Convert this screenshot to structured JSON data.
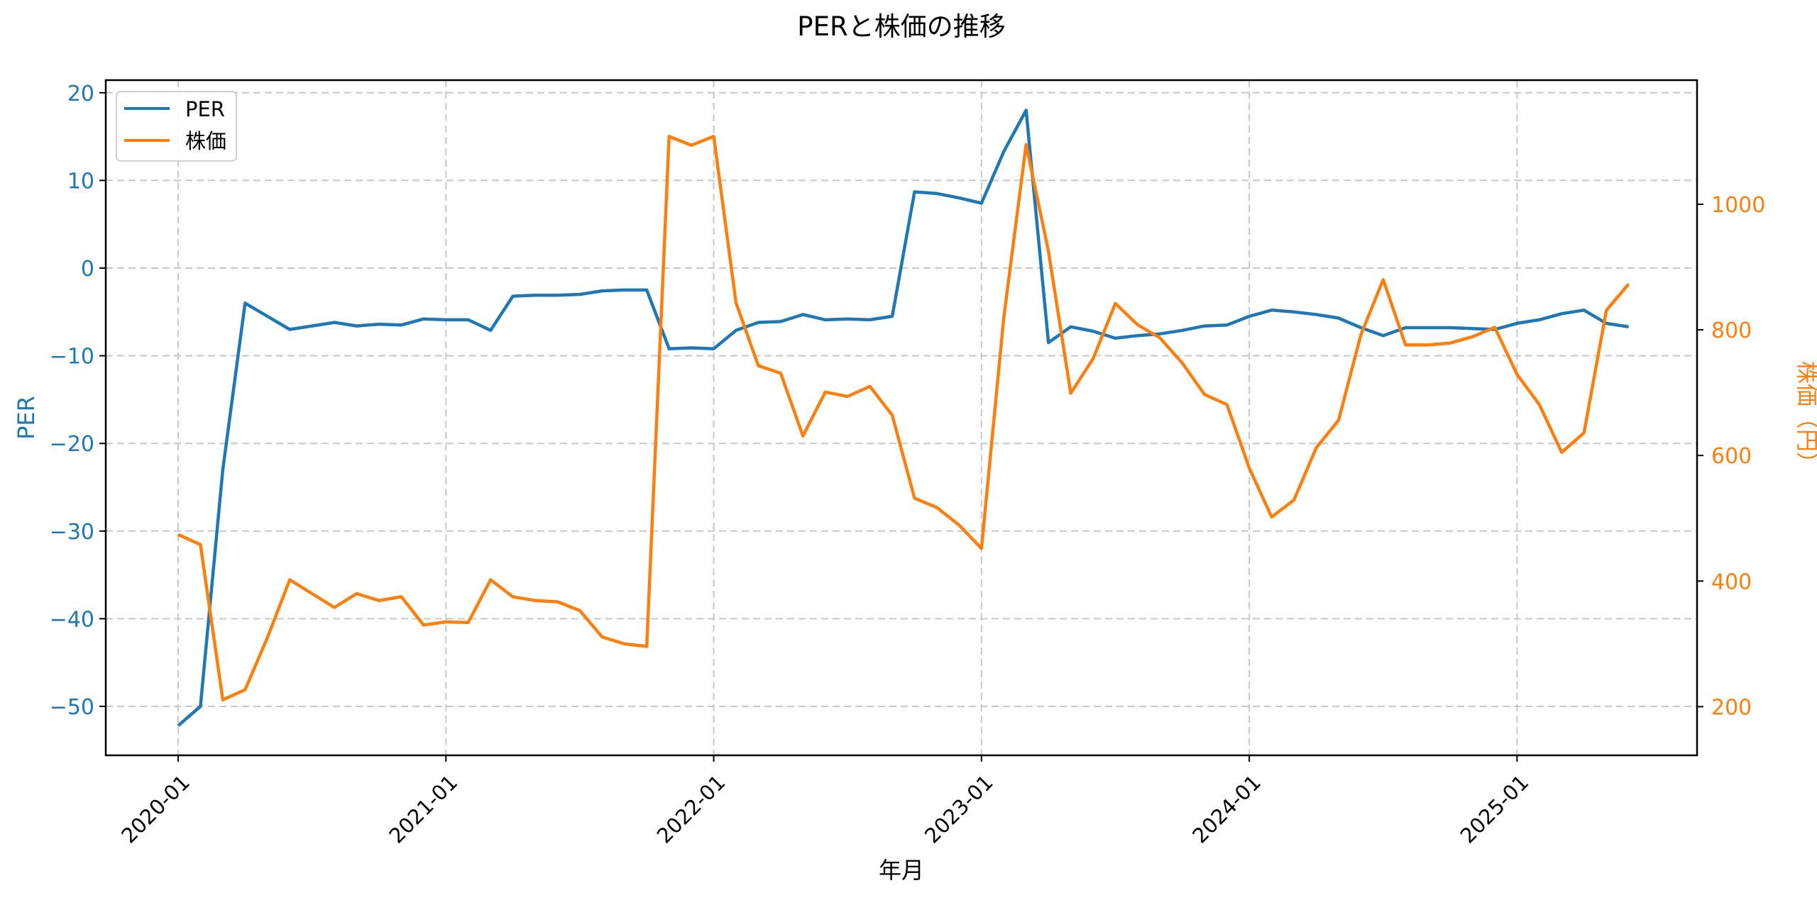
{
  "chart_data": {
    "type": "line",
    "title": "PERと株価の推移",
    "xlabel": "年月",
    "ylabel_left": "PER",
    "ylabel_right": "株価（円）",
    "grid": true,
    "legend_position": "upper left",
    "x_tick_labels": [
      "2020-01",
      "2021-01",
      "2022-01",
      "2023-01",
      "2024-01",
      "2025-01"
    ],
    "y_left_ticks": [
      20,
      10,
      0,
      -10,
      -20,
      -30,
      -40,
      -50
    ],
    "y_left_tick_labels": [
      "20",
      "10",
      "0",
      "−10",
      "−20",
      "−30",
      "−40",
      "−50"
    ],
    "y_left_lim": [
      -55.7,
      21.5
    ],
    "y_right_ticks": [
      1000,
      800,
      600,
      400,
      200
    ],
    "y_right_tick_labels": [
      "1000",
      "800",
      "600",
      "400",
      "200"
    ],
    "y_right_lim": [
      122,
      1193
    ],
    "x_start": "2020-01",
    "x_end": "2025-06",
    "series": [
      {
        "name": "PER",
        "color": "#1f77b4",
        "axis": "left",
        "values": [
          -52.2,
          -50.0,
          -23.0,
          -4.0,
          -5.5,
          -7.0,
          -6.6,
          -6.2,
          -6.6,
          -6.4,
          -6.5,
          -5.8,
          -5.9,
          -5.9,
          -7.1,
          -3.2,
          -3.1,
          -3.1,
          -3.0,
          -2.6,
          -2.5,
          -2.5,
          -9.2,
          -9.1,
          -9.2,
          -7.1,
          -6.2,
          -6.1,
          -5.3,
          -5.9,
          -5.8,
          -5.9,
          -5.5,
          8.7,
          8.5,
          8.0,
          7.4,
          13.3,
          18.0,
          -8.5,
          -6.7,
          -7.2,
          -8.0,
          -7.7,
          -7.5,
          -7.1,
          -6.6,
          -6.5,
          -5.5,
          -4.8,
          -5.0,
          -5.3,
          -5.7,
          -6.8,
          -7.7,
          -6.8,
          -6.8,
          -6.8,
          -6.9,
          -7.0,
          -6.3,
          -5.9,
          -5.2,
          -4.8,
          -6.3,
          -6.7
        ]
      },
      {
        "name": "株価",
        "color": "#ff7f0e",
        "axis": "right",
        "values": [
          474,
          458,
          211,
          227,
          310,
          402,
          380,
          358,
          380,
          369,
          375,
          330,
          335,
          334,
          402,
          375,
          369,
          367,
          353,
          311,
          300,
          296,
          1108,
          1094,
          1108,
          843,
          743,
          731,
          631,
          701,
          694,
          710,
          664,
          532,
          517,
          489,
          452,
          820,
          1095,
          925,
          699,
          754,
          842,
          808,
          787,
          747,
          697,
          681,
          580,
          502,
          529,
          612,
          656,
          792,
          880,
          776,
          776,
          779,
          789,
          804,
          729,
          681,
          605,
          636,
          831,
          873
        ]
      }
    ]
  }
}
